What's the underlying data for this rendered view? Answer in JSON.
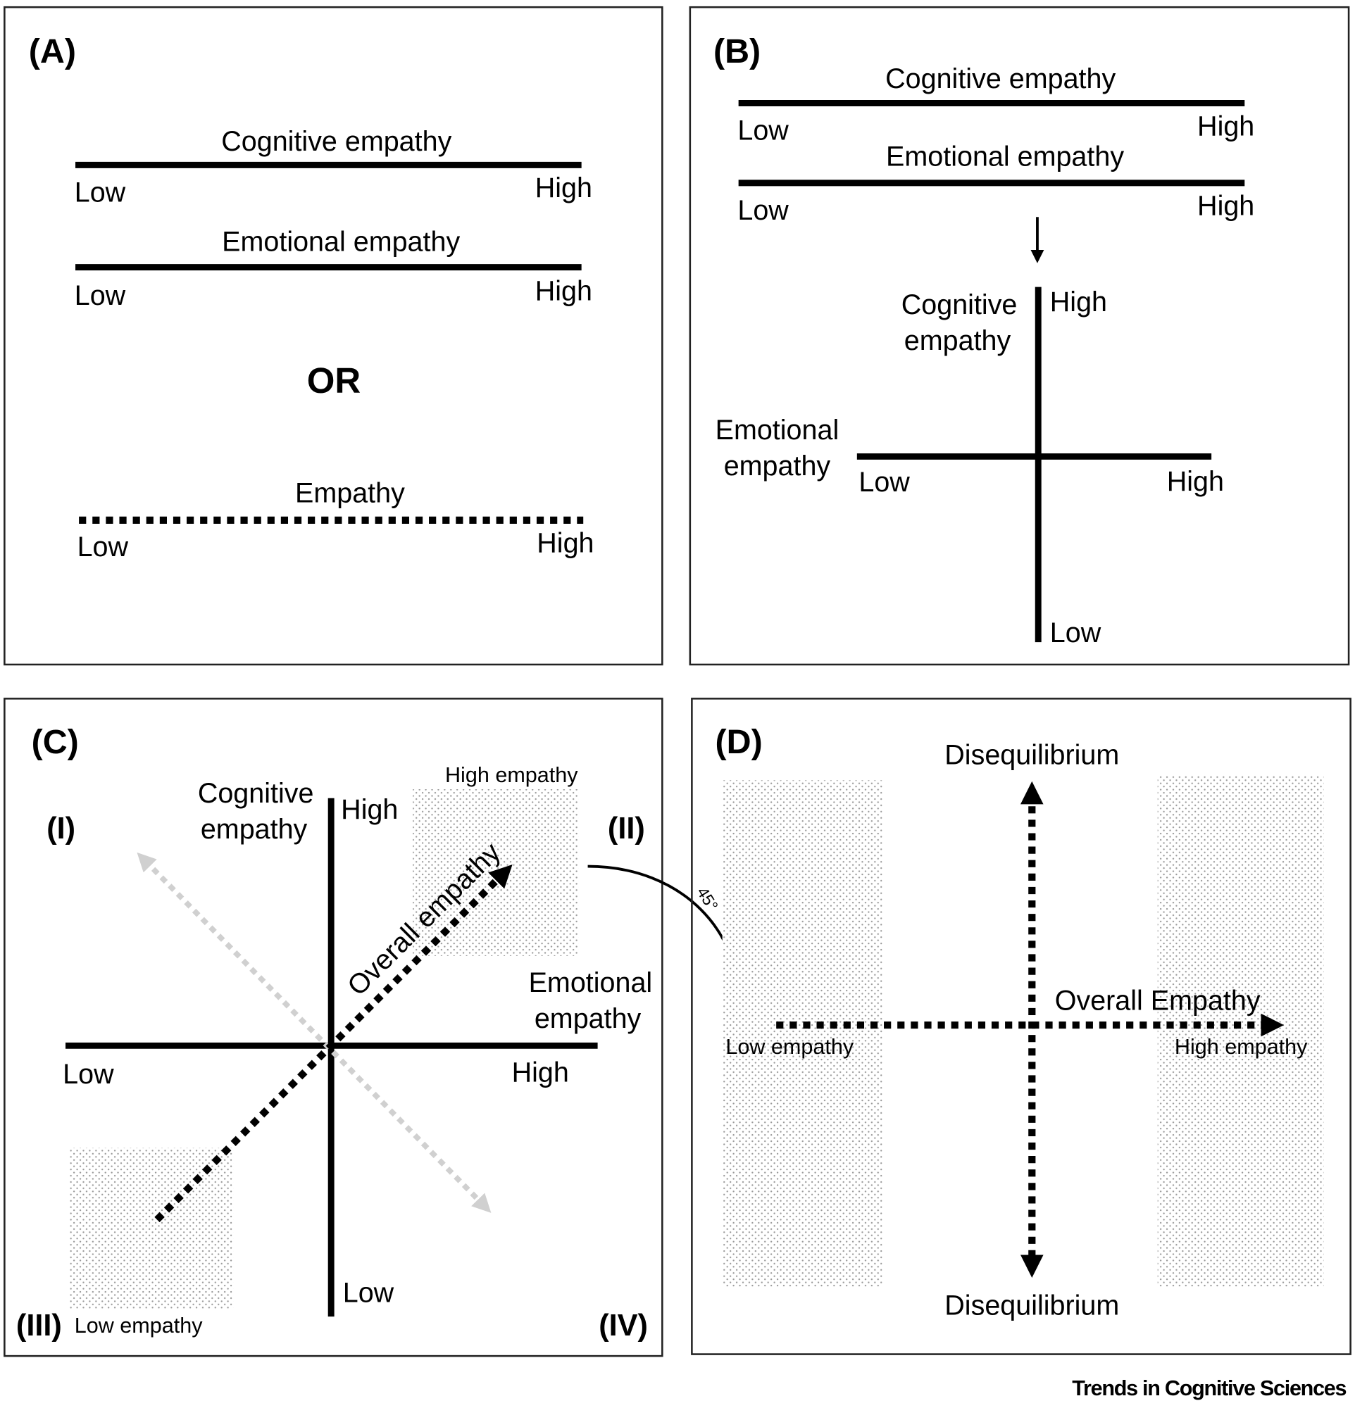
{
  "panels": {
    "a": {
      "label": "(A)",
      "cognitive": "Cognitive empathy",
      "emotional": "Emotional empathy",
      "or": "OR",
      "empathy": "Empathy",
      "low": "Low",
      "high": "High"
    },
    "b": {
      "label": "(B)",
      "cognitive": "Cognitive empathy",
      "emotional": "Emotional empathy",
      "cognitive_l1": "Cognitive",
      "emotional_l1": "Emotional",
      "empathy_l2": "empathy",
      "low": "Low",
      "high": "High"
    },
    "c": {
      "label": "(C)",
      "cognitive_l1": "Cognitive",
      "emotional_l1": "Emotional",
      "empathy_l2": "empathy",
      "low": "Low",
      "high": "High",
      "q1": "(I)",
      "q2": "(II)",
      "q3": "(III)",
      "q4": "(IV)",
      "high_empathy": "High empathy",
      "low_empathy": "Low empathy",
      "overall": "Overall empathy",
      "angle": "45°"
    },
    "d": {
      "label": "(D)",
      "diseq_top": "Disequilibrium",
      "diseq_bottom": "Disequilibrium",
      "overall": "Overall Empathy",
      "low_empathy": "Low empathy",
      "high_empathy": "High empathy"
    }
  },
  "footer": "Trends in Cognitive Sciences",
  "colors": {
    "ink": "#000000",
    "secondary_arrow": "#d0d0d0"
  }
}
